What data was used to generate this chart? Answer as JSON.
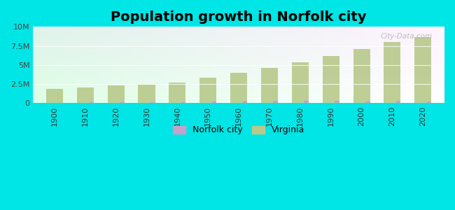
{
  "title": "Population growth in Norfolk city",
  "years": [
    1900,
    1910,
    1920,
    1930,
    1940,
    1950,
    1960,
    1970,
    1980,
    1990,
    2000,
    2010,
    2020
  ],
  "norfolk_city": [
    46624,
    67452,
    115777,
    129710,
    144332,
    213513,
    305872,
    307951,
    266979,
    261229,
    234403,
    242803,
    238005
  ],
  "virginia": [
    1854184,
    2061612,
    2309187,
    2421851,
    2677773,
    3318680,
    3966949,
    4648494,
    5346818,
    6187358,
    7078515,
    8001024,
    8631393
  ],
  "norfolk_color": "#c9a0c9",
  "virginia_color": "#b8c98a",
  "background_color": "#00e5e5",
  "title_fontsize": 14,
  "ylim": [
    0,
    10000000
  ],
  "yticks": [
    0,
    2500000,
    5000000,
    7500000,
    10000000
  ],
  "ytick_labels": [
    "0",
    "2.5M",
    "5M",
    "7.5M",
    "10M"
  ],
  "watermark": "City-Data.com",
  "xlim_left": 1893,
  "xlim_right": 2027
}
